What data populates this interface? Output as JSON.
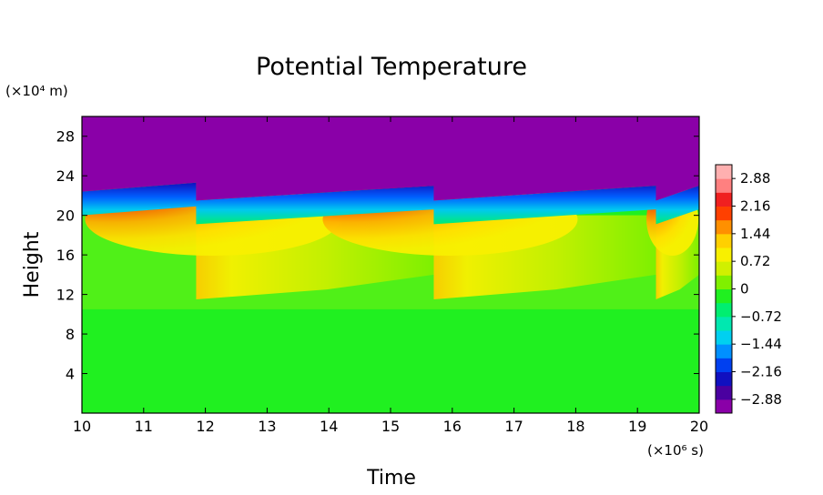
{
  "chart_data": {
    "type": "heatmap",
    "title": "Potential Temperature",
    "xlabel": "Time",
    "ylabel": "Height",
    "x_unit": "(×10⁶ s)",
    "y_unit": "(×10⁴ m)",
    "xlim": [
      10,
      20
    ],
    "ylim": [
      0,
      30
    ],
    "x_ticks": [
      "10",
      "11",
      "12",
      "13",
      "14",
      "15",
      "16",
      "17",
      "18",
      "19",
      "20"
    ],
    "y_ticks": [
      "4",
      "8",
      "12",
      "16",
      "20",
      "24",
      "28"
    ],
    "colorbar": {
      "range": [
        -3.24,
        3.24
      ],
      "ticks": [
        "2.88",
        "2.16",
        "1.44",
        "0.72",
        "0",
        "−0.72",
        "−1.44",
        "−2.16",
        "−2.88"
      ],
      "colors": [
        "#8a00a8",
        "#4a00a0",
        "#1010c0",
        "#0040f0",
        "#0090ff",
        "#00d0f0",
        "#00e8b0",
        "#00ee70",
        "#20f020",
        "#80f000",
        "#d0f000",
        "#f8f000",
        "#ffd000",
        "#ff9000",
        "#ff4000",
        "#f02020",
        "#ff8080",
        "#ffb0b0"
      ]
    },
    "events_x": [
      11.85,
      15.7,
      19.3
    ],
    "tropopause_top_y": 22.5,
    "fields": {
      "upper_region_value": -3.1,
      "lower_region_value": 0.3,
      "mid_region_value": 0.5,
      "peak_value": 2.3
    }
  }
}
